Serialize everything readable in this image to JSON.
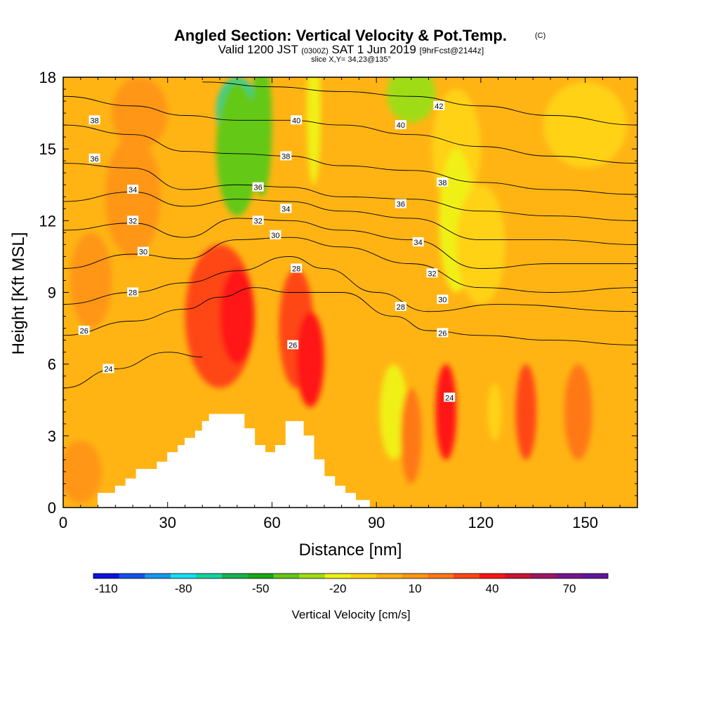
{
  "chart_data": {
    "type": "heatmap",
    "title": "Angled Section: Vertical Velocity & Pot.Temp.",
    "title_units": "(C)",
    "subtitle": {
      "valid_prefix": "Valid 1200 JST",
      "utc_time": "(0300Z)",
      "date": "SAT 1 Jun 2019",
      "forecast": "[9hrFcst@2144z]"
    },
    "slice_label": "slice X,Y= 34,23@135°",
    "xlabel": "Distance [nm]",
    "ylabel": "Height [Kft MSL]",
    "xlim": [
      0,
      165
    ],
    "ylim": [
      0,
      18
    ],
    "x_ticks": [
      0,
      30,
      60,
      90,
      120,
      150
    ],
    "x_tick_labels": [
      "0",
      "30",
      "60",
      "90",
      "120",
      "150"
    ],
    "y_ticks": [
      0,
      3,
      6,
      9,
      12,
      15,
      18
    ],
    "y_tick_labels": [
      "0",
      "3",
      "6",
      "9",
      "12",
      "15",
      "18"
    ],
    "colorbar": {
      "title": "Vertical Velocity [cm/s]",
      "min": -115,
      "step": 10,
      "colors": [
        "#1010e0",
        "#1450f0",
        "#1496f0",
        "#14dcf0",
        "#14d2a0",
        "#14b450",
        "#14aa14",
        "#64c814",
        "#a0dc14",
        "#f0f014",
        "#ffd214",
        "#ffb414",
        "#ff9614",
        "#ff7814",
        "#ff4614",
        "#ff1414",
        "#c81432",
        "#a01464",
        "#78148c",
        "#6414a0"
      ],
      "labels": [
        {
          "value": -110,
          "text": "-110"
        },
        {
          "value": -80,
          "text": "-80"
        },
        {
          "value": -50,
          "text": "-50"
        },
        {
          "value": -20,
          "text": "-20"
        },
        {
          "value": 10,
          "text": "10"
        },
        {
          "value": 40,
          "text": "40"
        },
        {
          "value": 70,
          "text": "70"
        }
      ]
    },
    "background_value": 3,
    "features": [
      {
        "x": 50,
        "y": 16.5,
        "rx": 6,
        "ry": 1.5,
        "value": -75
      },
      {
        "x": 50,
        "y": 15.0,
        "rx": 6,
        "ry": 2.8,
        "value": -45
      },
      {
        "x": 57,
        "y": 16.0,
        "rx": 3,
        "ry": 3.0,
        "value": -40
      },
      {
        "x": 72,
        "y": 16.5,
        "rx": 2,
        "ry": 3.0,
        "value": -25
      },
      {
        "x": 100,
        "y": 17.3,
        "rx": 7,
        "ry": 1.2,
        "value": -30
      },
      {
        "x": 113,
        "y": 15.0,
        "rx": 7,
        "ry": 2.5,
        "value": -15
      },
      {
        "x": 113,
        "y": 12.0,
        "rx": 5,
        "ry": 3.0,
        "value": -20
      },
      {
        "x": 120,
        "y": 11.0,
        "rx": 7,
        "ry": 2.5,
        "value": -12
      },
      {
        "x": 150,
        "y": 16.0,
        "rx": 12,
        "ry": 1.8,
        "value": -10
      },
      {
        "x": 45,
        "y": 8.0,
        "rx": 10,
        "ry": 3.0,
        "value": 25
      },
      {
        "x": 50,
        "y": 8.0,
        "rx": 5,
        "ry": 2.0,
        "value": 42
      },
      {
        "x": 67,
        "y": 7.5,
        "rx": 5,
        "ry": 2.5,
        "value": 30
      },
      {
        "x": 71,
        "y": 6.2,
        "rx": 4,
        "ry": 2.0,
        "value": 42
      },
      {
        "x": 22,
        "y": 16.5,
        "rx": 8,
        "ry": 1.5,
        "value": 12
      },
      {
        "x": 20,
        "y": 13.0,
        "rx": 8,
        "ry": 2.5,
        "value": 12
      },
      {
        "x": 8,
        "y": 9.5,
        "rx": 6,
        "ry": 2.0,
        "value": 12
      },
      {
        "x": 95,
        "y": 4.0,
        "rx": 4,
        "ry": 2.0,
        "value": -25
      },
      {
        "x": 110,
        "y": 4.0,
        "rx": 3,
        "ry": 2.0,
        "value": 35
      },
      {
        "x": 133,
        "y": 4.0,
        "rx": 3,
        "ry": 2.0,
        "value": 30
      },
      {
        "x": 148,
        "y": 4.0,
        "rx": 4,
        "ry": 2.0,
        "value": 18
      },
      {
        "x": 100,
        "y": 3.0,
        "rx": 3,
        "ry": 2.0,
        "value": 20
      },
      {
        "x": 124,
        "y": 4.0,
        "rx": 2,
        "ry": 1.2,
        "value": -15
      },
      {
        "x": 5,
        "y": 1.5,
        "rx": 6,
        "ry": 1.3,
        "value": 12
      }
    ],
    "terrain": [
      [
        0,
        0
      ],
      [
        10,
        0
      ],
      [
        10,
        0.6
      ],
      [
        15,
        0.6
      ],
      [
        15,
        0.9
      ],
      [
        18,
        0.9
      ],
      [
        18,
        1.2
      ],
      [
        21,
        1.2
      ],
      [
        21,
        1.6
      ],
      [
        27,
        1.6
      ],
      [
        27,
        1.9
      ],
      [
        30,
        1.9
      ],
      [
        30,
        2.3
      ],
      [
        33,
        2.3
      ],
      [
        33,
        2.6
      ],
      [
        35,
        2.6
      ],
      [
        35,
        2.9
      ],
      [
        38,
        2.9
      ],
      [
        38,
        3.2
      ],
      [
        40,
        3.2
      ],
      [
        40,
        3.6
      ],
      [
        42,
        3.6
      ],
      [
        42,
        3.9
      ],
      [
        52,
        3.9
      ],
      [
        52,
        3.3
      ],
      [
        55,
        3.3
      ],
      [
        55,
        2.6
      ],
      [
        58,
        2.6
      ],
      [
        58,
        2.3
      ],
      [
        61,
        2.3
      ],
      [
        61,
        2.6
      ],
      [
        64,
        2.6
      ],
      [
        64,
        3.6
      ],
      [
        69,
        3.6
      ],
      [
        69,
        3.0
      ],
      [
        72,
        3.0
      ],
      [
        72,
        2.0
      ],
      [
        75,
        2.0
      ],
      [
        75,
        1.3
      ],
      [
        78,
        1.3
      ],
      [
        78,
        0.9
      ],
      [
        81,
        0.9
      ],
      [
        81,
        0.6
      ],
      [
        84,
        0.6
      ],
      [
        84,
        0.3
      ],
      [
        88,
        0.3
      ],
      [
        88,
        0
      ],
      [
        165,
        0
      ]
    ],
    "isentropes": [
      {
        "level": 24,
        "points": [
          [
            0,
            5.0
          ],
          [
            15,
            5.8
          ],
          [
            30,
            6.5
          ],
          [
            40,
            6.3
          ]
        ]
      },
      {
        "level": 26,
        "points": [
          [
            0,
            7.2
          ],
          [
            20,
            7.8
          ],
          [
            35,
            8.3
          ],
          [
            45,
            8.8
          ],
          [
            55,
            9.2
          ],
          [
            65,
            9.0
          ],
          [
            80,
            9.0
          ],
          [
            95,
            8.0
          ],
          [
            105,
            7.4
          ],
          [
            120,
            7.2
          ],
          [
            140,
            7.0
          ],
          [
            165,
            6.8
          ]
        ]
      },
      {
        "level": 28,
        "points": [
          [
            0,
            8.5
          ],
          [
            20,
            9.0
          ],
          [
            35,
            9.4
          ],
          [
            50,
            9.9
          ],
          [
            65,
            10.5
          ],
          [
            75,
            10.0
          ],
          [
            90,
            9.0
          ],
          [
            105,
            8.2
          ],
          [
            125,
            8.5
          ],
          [
            165,
            8.2
          ]
        ]
      },
      {
        "level": 30,
        "points": [
          [
            0,
            10.0
          ],
          [
            20,
            10.6
          ],
          [
            35,
            10.4
          ],
          [
            50,
            11.2
          ],
          [
            65,
            11.3
          ],
          [
            80,
            10.9
          ],
          [
            100,
            10.2
          ],
          [
            120,
            9.2
          ],
          [
            140,
            9.0
          ],
          [
            165,
            9.2
          ]
        ]
      },
      {
        "level": 32,
        "points": [
          [
            0,
            11.6
          ],
          [
            20,
            11.9
          ],
          [
            35,
            11.3
          ],
          [
            50,
            12.1
          ],
          [
            65,
            12.0
          ],
          [
            80,
            11.6
          ],
          [
            100,
            11.2
          ],
          [
            120,
            10.0
          ],
          [
            140,
            10.2
          ],
          [
            165,
            10.2
          ]
        ]
      },
      {
        "level": 34,
        "points": [
          [
            0,
            12.8
          ],
          [
            20,
            13.2
          ],
          [
            35,
            12.6
          ],
          [
            50,
            12.9
          ],
          [
            65,
            12.8
          ],
          [
            80,
            12.4
          ],
          [
            100,
            12.1
          ],
          [
            120,
            11.2
          ],
          [
            140,
            11.2
          ],
          [
            165,
            11.0
          ]
        ]
      },
      {
        "level": 36,
        "points": [
          [
            0,
            14.4
          ],
          [
            20,
            14.2
          ],
          [
            35,
            13.3
          ],
          [
            50,
            13.5
          ],
          [
            65,
            13.4
          ],
          [
            80,
            13.0
          ],
          [
            100,
            12.9
          ],
          [
            120,
            12.4
          ],
          [
            140,
            12.2
          ],
          [
            165,
            12.0
          ]
        ]
      },
      {
        "level": 38,
        "points": [
          [
            0,
            16.0
          ],
          [
            20,
            15.6
          ],
          [
            35,
            14.9
          ],
          [
            50,
            14.8
          ],
          [
            65,
            14.7
          ],
          [
            80,
            14.3
          ],
          [
            100,
            14.1
          ],
          [
            120,
            13.6
          ],
          [
            140,
            13.3
          ],
          [
            165,
            13.1
          ]
        ]
      },
      {
        "level": 40,
        "points": [
          [
            0,
            17.2
          ],
          [
            20,
            16.8
          ],
          [
            35,
            16.4
          ],
          [
            50,
            16.2
          ],
          [
            65,
            16.2
          ],
          [
            80,
            16.0
          ],
          [
            100,
            15.6
          ],
          [
            120,
            15.1
          ],
          [
            140,
            14.7
          ],
          [
            165,
            14.4
          ]
        ]
      },
      {
        "level": 42,
        "points": [
          [
            40,
            17.8
          ],
          [
            60,
            17.6
          ],
          [
            80,
            17.4
          ],
          [
            100,
            17.2
          ],
          [
            120,
            16.8
          ],
          [
            140,
            16.4
          ],
          [
            165,
            16.0
          ]
        ]
      }
    ],
    "contour_labels": [
      {
        "text": "38",
        "x": 9,
        "y": 16.2
      },
      {
        "text": "36",
        "x": 9,
        "y": 14.6
      },
      {
        "text": "34",
        "x": 20,
        "y": 13.3
      },
      {
        "text": "32",
        "x": 20,
        "y": 12.0
      },
      {
        "text": "30",
        "x": 23,
        "y": 10.7
      },
      {
        "text": "28",
        "x": 20,
        "y": 9.0
      },
      {
        "text": "26",
        "x": 6,
        "y": 7.4
      },
      {
        "text": "24",
        "x": 13,
        "y": 5.8
      },
      {
        "text": "40",
        "x": 67,
        "y": 16.2
      },
      {
        "text": "38",
        "x": 64,
        "y": 14.7
      },
      {
        "text": "36",
        "x": 56,
        "y": 13.4
      },
      {
        "text": "34",
        "x": 64,
        "y": 12.5
      },
      {
        "text": "32",
        "x": 56,
        "y": 12.0
      },
      {
        "text": "30",
        "x": 61,
        "y": 11.4
      },
      {
        "text": "28",
        "x": 67,
        "y": 10.0
      },
      {
        "text": "26",
        "x": 66,
        "y": 6.8
      },
      {
        "text": "42",
        "x": 108,
        "y": 16.8
      },
      {
        "text": "40",
        "x": 97,
        "y": 16.0
      },
      {
        "text": "38",
        "x": 109,
        "y": 13.6
      },
      {
        "text": "36",
        "x": 97,
        "y": 12.7
      },
      {
        "text": "34",
        "x": 102,
        "y": 11.1
      },
      {
        "text": "32",
        "x": 106,
        "y": 9.8
      },
      {
        "text": "30",
        "x": 109,
        "y": 8.7
      },
      {
        "text": "28",
        "x": 97,
        "y": 8.4
      },
      {
        "text": "26",
        "x": 109,
        "y": 7.3
      },
      {
        "text": "24",
        "x": 111,
        "y": 4.6
      }
    ]
  }
}
